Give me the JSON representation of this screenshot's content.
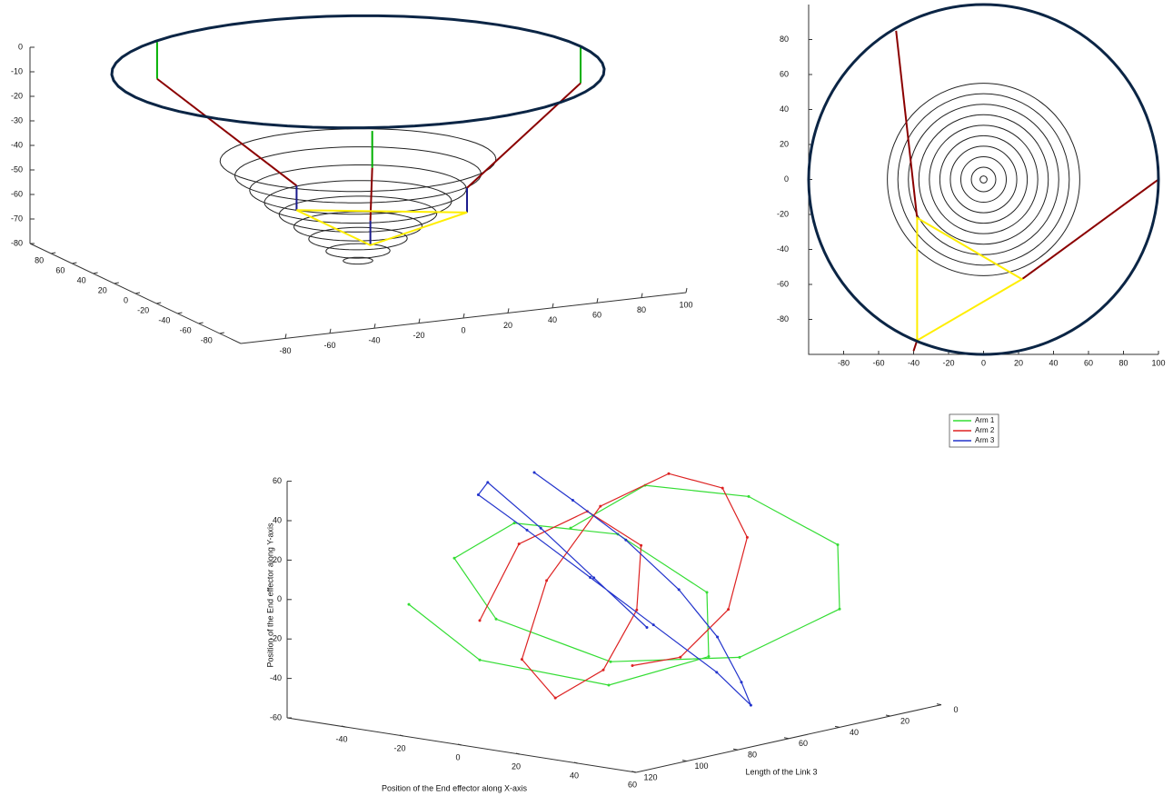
{
  "chart_data": [
    {
      "type": "cone3d",
      "xlim": [
        -100,
        100
      ],
      "ylim": [
        -100,
        100
      ],
      "zlim": [
        -80,
        0
      ],
      "xticks": [
        -80,
        -60,
        -40,
        -20,
        0,
        20,
        40,
        60,
        80,
        100
      ],
      "yticks": [
        -80,
        -60,
        -40,
        -20,
        0,
        20,
        40,
        60,
        80
      ],
      "zticks": [
        0,
        -10,
        -20,
        -30,
        -40,
        -50,
        -60,
        -70,
        -80
      ],
      "base_radius": 100,
      "base_z": 0,
      "base_color": "#0b2545",
      "rings": {
        "color": "#222222",
        "radius": [
          56,
          50,
          44,
          38,
          32,
          26,
          20,
          13,
          6
        ],
        "z": [
          -36,
          -42,
          -48,
          -53,
          -58,
          -63,
          -68,
          -73,
          -77
        ]
      },
      "arms": [
        {
          "x": [
            -50,
            -50,
            -38,
            -38
          ],
          "y": [
            85,
            85,
            -22,
            -22
          ],
          "z": [
            0,
            -15,
            -38,
            -48
          ]
        },
        {
          "x": [
            100,
            100,
            22,
            22
          ],
          "y": [
            0,
            0,
            -57,
            -57
          ],
          "z": [
            0,
            -15,
            -38,
            -48
          ]
        },
        {
          "x": [
            -40,
            -40,
            -38,
            -38
          ],
          "y": [
            -98,
            -98,
            -92,
            -92
          ],
          "z": [
            0,
            -15,
            -38,
            -48
          ]
        }
      ],
      "link_colors": [
        "#00b000",
        "#8b0000",
        "#1a1a8c"
      ],
      "platform_color": "#ffee00"
    },
    {
      "type": "topview",
      "xlim": [
        -100,
        100
      ],
      "ylim": [
        -100,
        100
      ],
      "xticks": [
        -80,
        -60,
        -40,
        -20,
        0,
        20,
        40,
        60,
        80,
        100
      ],
      "yticks": [
        -80,
        -60,
        -40,
        -20,
        0,
        20,
        40,
        60,
        80
      ],
      "base_radius": 100,
      "base_color": "#0b2545",
      "rings": {
        "color": "#222222",
        "radius": [
          55,
          49,
          43,
          37,
          31,
          25,
          19,
          13,
          7,
          2
        ]
      },
      "arms": [
        {
          "x": [
            -50,
            -38
          ],
          "y": [
            85,
            -22
          ]
        },
        {
          "x": [
            100,
            22
          ],
          "y": [
            0,
            -57
          ]
        },
        {
          "x": [
            -40,
            -38
          ],
          "y": [
            -98,
            -92
          ]
        }
      ],
      "link_color": "#8b0000",
      "platform_color": "#ffee00"
    },
    {
      "type": "line3d",
      "xlabel": "Position of the End effector along X-axis",
      "ylabel": "Position of the End effector along Y-axis",
      "zlabel": "Length of the Link 3",
      "xlim": [
        -60,
        60
      ],
      "ylim": [
        -60,
        60
      ],
      "zlim": [
        0,
        120
      ],
      "xticks": [
        -40,
        -20,
        0,
        20,
        40,
        60
      ],
      "yticks": [
        -60,
        -40,
        -20,
        0,
        20,
        40,
        60
      ],
      "zticks": [
        0,
        20,
        40,
        60,
        80,
        100,
        120
      ],
      "series": [
        {
          "name": "Arm 1",
          "color": "#33dd33",
          "x": [
            -50,
            -20,
            20,
            55,
            60,
            30,
            -10,
            -45,
            -55,
            -30,
            10,
            45,
            50,
            20,
            -20,
            -40
          ],
          "y": [
            10,
            40,
            45,
            30,
            0,
            -30,
            -40,
            -25,
            5,
            30,
            35,
            15,
            -15,
            -35,
            -30,
            -5
          ],
          "z": [
            20,
            25,
            30,
            35,
            40,
            45,
            50,
            55,
            60,
            65,
            70,
            75,
            80,
            85,
            90,
            95
          ]
        },
        {
          "name": "Arm 2",
          "color": "#dd2222",
          "x": [
            -20,
            0,
            20,
            30,
            25,
            10,
            -10,
            -25,
            -30,
            -15,
            5,
            20,
            25,
            10,
            -10,
            -20
          ],
          "y": [
            -50,
            -40,
            -10,
            30,
            55,
            60,
            40,
            0,
            -40,
            -55,
            -35,
            0,
            35,
            50,
            30,
            -10
          ],
          "z": [
            30,
            34,
            38,
            42,
            46,
            50,
            54,
            58,
            62,
            66,
            70,
            74,
            78,
            82,
            86,
            90
          ]
        },
        {
          "name": "Arm 3",
          "color": "#2233cc",
          "x": [
            -45,
            -30,
            -10,
            10,
            25,
            35,
            40,
            30,
            10,
            -10,
            -30,
            -45,
            -40,
            -20,
            0,
            20
          ],
          "y": [
            45,
            35,
            20,
            0,
            -20,
            -40,
            -50,
            -35,
            -15,
            5,
            25,
            40,
            48,
            30,
            10,
            -10
          ],
          "z": [
            40,
            42,
            44,
            46,
            48,
            50,
            52,
            54,
            56,
            58,
            60,
            62,
            64,
            66,
            68,
            70
          ]
        }
      ]
    }
  ]
}
